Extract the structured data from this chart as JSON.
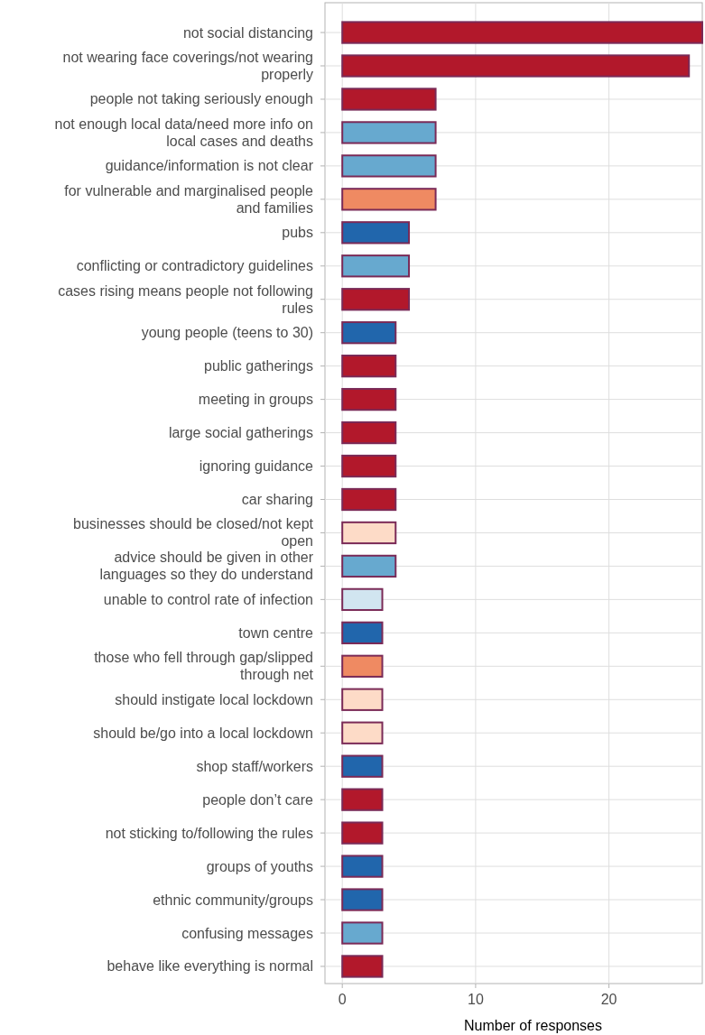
{
  "chart_data": {
    "type": "bar",
    "orientation": "horizontal",
    "xlabel": "Number of responses",
    "categories": [
      "not social distancing",
      "not wearing face coverings/not wearing properly",
      "people not taking seriously enough",
      "not enough local data/need more info on local cases and deaths",
      "guidance/information is not clear",
      "for vulnerable and marginalised people and families",
      "pubs",
      "conflicting or contradictory guidelines",
      "cases rising means people not following rules",
      "young people (teens to 30)",
      "public gatherings",
      "meeting in groups",
      "large social gatherings",
      "ignoring guidance",
      "car sharing",
      "businesses should be closed/not kept open",
      "advice should be given in other languages so they do understand",
      "unable to control rate of infection",
      "town centre",
      "those who fell through gap/slipped through net",
      "should instigate local lockdown",
      "should be/go into a local lockdown",
      "shop staff/workers",
      "people don’t care",
      "not sticking to/following the rules",
      "groups of youths",
      "ethnic community/groups",
      "confusing messages",
      "behave like everything is normal"
    ],
    "values": [
      27,
      26,
      7,
      7,
      7,
      7,
      5,
      5,
      5,
      4,
      4,
      4,
      4,
      4,
      4,
      4,
      4,
      3,
      3,
      3,
      3,
      3,
      3,
      3,
      3,
      3,
      3,
      3,
      3
    ],
    "colors": [
      "#b2182b",
      "#b2182b",
      "#b2182b",
      "#67a9cf",
      "#67a9cf",
      "#ef8a62",
      "#2166ac",
      "#67a9cf",
      "#b2182b",
      "#2166ac",
      "#b2182b",
      "#b2182b",
      "#b2182b",
      "#b2182b",
      "#b2182b",
      "#fddbc7",
      "#67a9cf",
      "#d1e5f0",
      "#2166ac",
      "#ef8a62",
      "#fddbc7",
      "#fddbc7",
      "#2166ac",
      "#b2182b",
      "#b2182b",
      "#2166ac",
      "#2166ac",
      "#67a9cf",
      "#b2182b"
    ],
    "xlim": [
      -1.3,
      27
    ],
    "xticks": [
      0,
      10,
      20
    ],
    "grid": true
  }
}
